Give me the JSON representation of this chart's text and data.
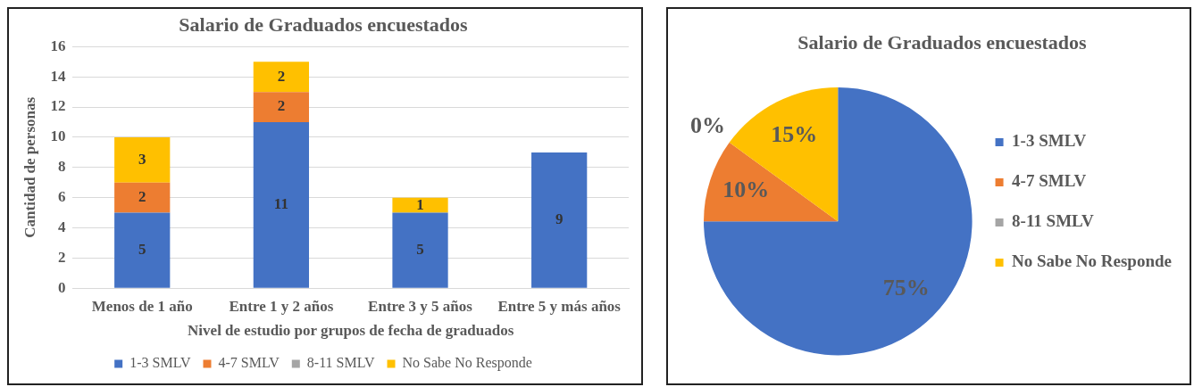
{
  "chart_data": [
    {
      "type": "bar",
      "title": "Salario de Graduados encuestados",
      "xlabel": "Nivel de estudio por grupos de fecha de graduados",
      "ylabel": "Cantidad de personas",
      "categories": [
        "Menos de 1 año",
        "Entre 1 y 2 años",
        "Entre 3 y 5 años",
        "Entre 5 y más años"
      ],
      "stacked": true,
      "series": [
        {
          "name": "1-3 SMLV",
          "color": "#4472c4",
          "values": [
            5,
            11,
            5,
            9
          ]
        },
        {
          "name": "4-7 SMLV",
          "color": "#ed7d31",
          "values": [
            2,
            2,
            null,
            null
          ]
        },
        {
          "name": "8-11 SMLV",
          "color": "#a5a5a5",
          "values": [
            null,
            null,
            null,
            null
          ]
        },
        {
          "name": "No Sabe No Responde",
          "color": "#ffc000",
          "values": [
            3,
            2,
            1,
            null
          ]
        }
      ],
      "ylim": [
        0,
        16
      ],
      "yticks": [
        0,
        2,
        4,
        6,
        8,
        10,
        12,
        14,
        16
      ],
      "grid": "y",
      "legend": "bottom",
      "data_labels": true
    },
    {
      "type": "pie",
      "title": "Salario de Graduados encuestados",
      "categories": [
        "1-3 SMLV",
        "4-7 SMLV",
        "8-11 SMLV",
        "No Sabe No Responde"
      ],
      "values": [
        75,
        10,
        0,
        15
      ],
      "colors": [
        "#4472c4",
        "#ed7d31",
        "#a5a5a5",
        "#ffc000"
      ],
      "value_labels": [
        "75%",
        "10%",
        "0%",
        "15%"
      ],
      "legend": "right"
    }
  ]
}
